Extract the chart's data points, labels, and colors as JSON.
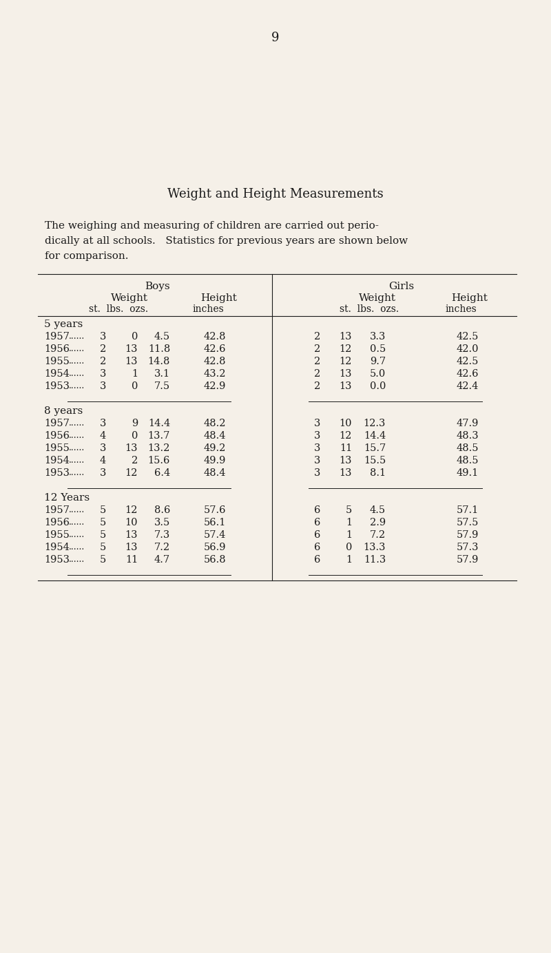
{
  "page_number": "9",
  "title": "Weight and Height Measurements",
  "intro_text": "The weighing and measuring of children are carried out perio-\ndically at all schools.   Statistics for previous years are shown below\nfor comparison.",
  "bg_color": "#f5f0e8",
  "text_color": "#1a1a1a",
  "col_header_boys": "Boys",
  "col_header_girls": "Girls",
  "col_header_weight": "Weight",
  "col_header_height": "Height",
  "groups": [
    {
      "label": "5 years",
      "rows": [
        {
          "year": "1957",
          "b_st": "3",
          "b_lbs": "0",
          "b_ozs": "4.5",
          "b_h": "42.8",
          "g_st": "2",
          "g_lbs": "13",
          "g_ozs": "3.3",
          "g_h": "42.5"
        },
        {
          "year": "1956",
          "b_st": "2",
          "b_lbs": "13",
          "b_ozs": "11.8",
          "b_h": "42.6",
          "g_st": "2",
          "g_lbs": "12",
          "g_ozs": "0.5",
          "g_h": "42.0"
        },
        {
          "year": "1955",
          "b_st": "2",
          "b_lbs": "13",
          "b_ozs": "14.8",
          "b_h": "42.8",
          "g_st": "2",
          "g_lbs": "12",
          "g_ozs": "9.7",
          "g_h": "42.5"
        },
        {
          "year": "1954",
          "b_st": "3",
          "b_lbs": "1",
          "b_ozs": "3.1",
          "b_h": "43.2",
          "g_st": "2",
          "g_lbs": "13",
          "g_ozs": "5.0",
          "g_h": "42.6"
        },
        {
          "year": "1953",
          "b_st": "3",
          "b_lbs": "0",
          "b_ozs": "7.5",
          "b_h": "42.9",
          "g_st": "2",
          "g_lbs": "13",
          "g_ozs": "0.0",
          "g_h": "42.4"
        }
      ]
    },
    {
      "label": "8 years",
      "rows": [
        {
          "year": "1957",
          "b_st": "3",
          "b_lbs": "9",
          "b_ozs": "14.4",
          "b_h": "48.2",
          "g_st": "3",
          "g_lbs": "10",
          "g_ozs": "12.3",
          "g_h": "47.9"
        },
        {
          "year": "1956",
          "b_st": "4",
          "b_lbs": "0",
          "b_ozs": "13.7",
          "b_h": "48.4",
          "g_st": "3",
          "g_lbs": "12",
          "g_ozs": "14.4",
          "g_h": "48.3"
        },
        {
          "year": "1955",
          "b_st": "3",
          "b_lbs": "13",
          "b_ozs": "13.2",
          "b_h": "49.2",
          "g_st": "3",
          "g_lbs": "11",
          "g_ozs": "15.7",
          "g_h": "48.5"
        },
        {
          "year": "1954",
          "b_st": "4",
          "b_lbs": "2",
          "b_ozs": "15.6",
          "b_h": "49.9",
          "g_st": "3",
          "g_lbs": "13",
          "g_ozs": "15.5",
          "g_h": "48.5"
        },
        {
          "year": "1953",
          "b_st": "3",
          "b_lbs": "12",
          "b_ozs": "6.4",
          "b_h": "48.4",
          "g_st": "3",
          "g_lbs": "13",
          "g_ozs": "8.1",
          "g_h": "49.1"
        }
      ]
    },
    {
      "label": "12 Years",
      "rows": [
        {
          "year": "1957",
          "b_st": "5",
          "b_lbs": "12",
          "b_ozs": "8.6",
          "b_h": "57.6",
          "g_st": "6",
          "g_lbs": "5",
          "g_ozs": "4.5",
          "g_h": "57.1"
        },
        {
          "year": "1956",
          "b_st": "5",
          "b_lbs": "10",
          "b_ozs": "3.5",
          "b_h": "56.1",
          "g_st": "6",
          "g_lbs": "1",
          "g_ozs": "2.9",
          "g_h": "57.5"
        },
        {
          "year": "1955",
          "b_st": "5",
          "b_lbs": "13",
          "b_ozs": "7.3",
          "b_h": "57.4",
          "g_st": "6",
          "g_lbs": "1",
          "g_ozs": "7.2",
          "g_h": "57.9"
        },
        {
          "year": "1954",
          "b_st": "5",
          "b_lbs": "13",
          "b_ozs": "7.2",
          "b_h": "56.9",
          "g_st": "6",
          "g_lbs": "0",
          "g_ozs": "13.3",
          "g_h": "57.3"
        },
        {
          "year": "1953",
          "b_st": "5",
          "b_lbs": "11",
          "b_ozs": "4.7",
          "b_h": "56.8",
          "g_st": "6",
          "g_lbs": "1",
          "g_ozs": "11.3",
          "g_h": "57.9"
        }
      ]
    }
  ]
}
